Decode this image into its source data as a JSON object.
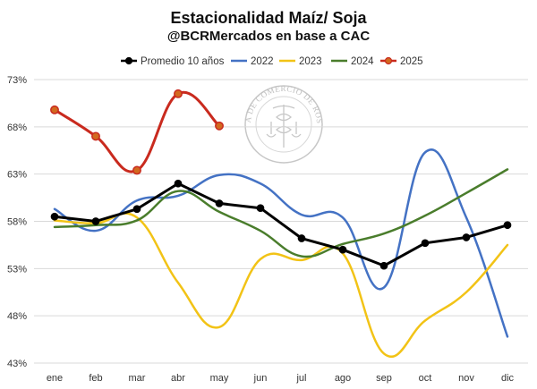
{
  "chart_data": {
    "type": "line",
    "title": "Estacionalidad Maíz/ Soja",
    "subtitle": "@BCRMercados en base a CAC",
    "watermark": "BOLSA DE COMERCIO DE ROSARIO",
    "xlabel": "",
    "ylabel": "",
    "categories": [
      "ene",
      "feb",
      "mar",
      "abr",
      "may",
      "jun",
      "jul",
      "ago",
      "sep",
      "oct",
      "nov",
      "dic"
    ],
    "ylim": [
      43,
      73
    ],
    "yticks": [
      43,
      48,
      53,
      58,
      63,
      68,
      73
    ],
    "ytick_labels": [
      "43%",
      "48%",
      "53%",
      "58%",
      "63%",
      "68%",
      "73%"
    ],
    "grid": "horizontal",
    "legend_position": "top",
    "series": [
      {
        "name": "Promedio 10 años",
        "color": "#000000",
        "markers": true,
        "smooth": false,
        "values": [
          58.5,
          58.0,
          59.3,
          62.0,
          59.9,
          59.4,
          56.2,
          55.0,
          53.3,
          55.7,
          56.3,
          57.6
        ]
      },
      {
        "name": "2022",
        "color": "#4472C4",
        "markers": false,
        "smooth": true,
        "values": [
          59.3,
          57.0,
          60.2,
          60.7,
          62.9,
          62.0,
          58.7,
          58.4,
          51.0,
          65.3,
          58.4,
          45.8
        ]
      },
      {
        "name": "2023",
        "color": "#F2C316",
        "markers": false,
        "smooth": true,
        "values": [
          58.1,
          57.8,
          58.4,
          51.5,
          46.8,
          54.0,
          53.9,
          54.6,
          44.0,
          47.5,
          50.5,
          55.5
        ]
      },
      {
        "name": "2024",
        "color": "#4A7D2C",
        "markers": false,
        "smooth": true,
        "values": [
          57.4,
          57.6,
          58.1,
          61.2,
          59.0,
          57.0,
          54.3,
          55.6,
          56.7,
          58.6,
          61.0,
          63.5
        ]
      },
      {
        "name": "2025",
        "color": "#C92A1E",
        "markers": true,
        "smooth": true,
        "values": [
          69.8,
          67.0,
          63.4,
          71.5,
          68.1,
          null,
          null,
          null,
          null,
          null,
          null,
          null
        ]
      }
    ]
  }
}
